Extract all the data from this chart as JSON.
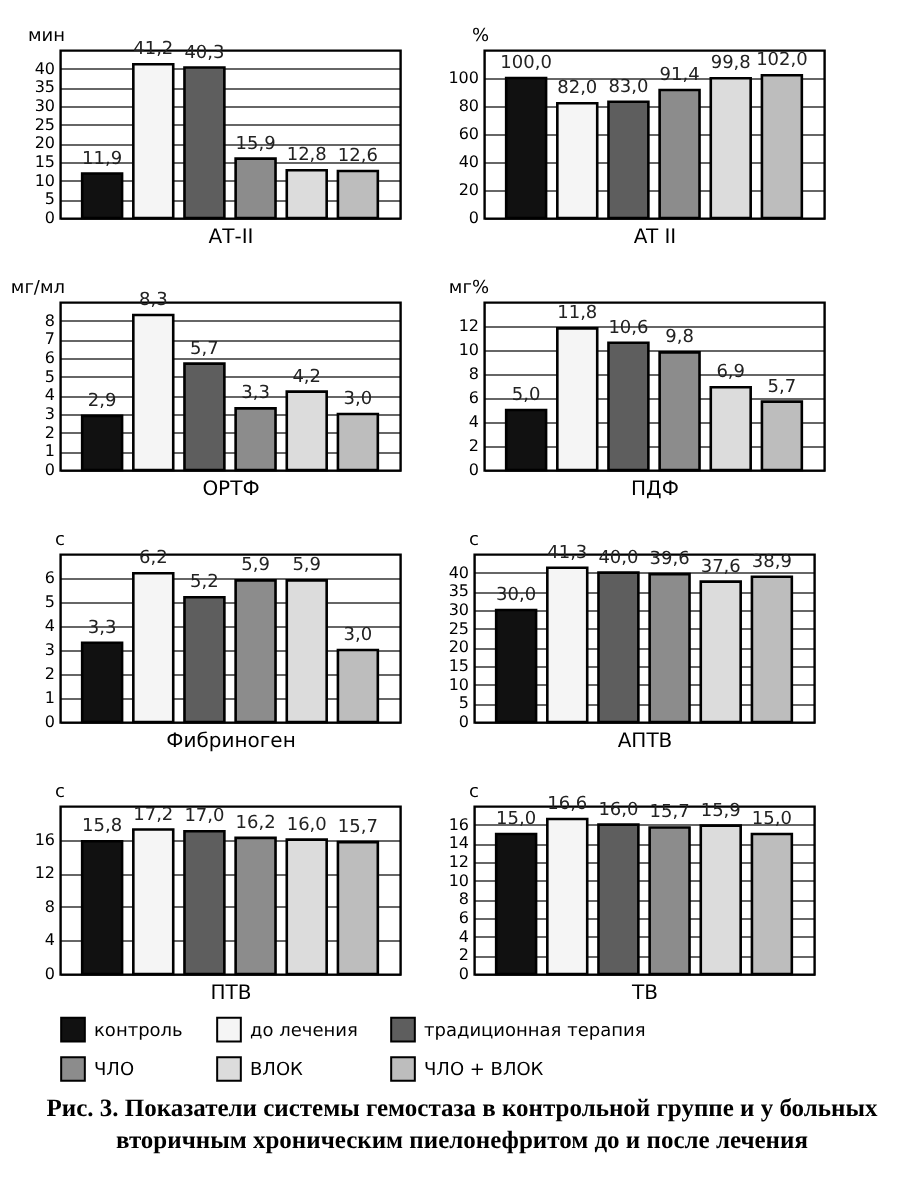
{
  "chart_data": [
    {
      "type": "bar",
      "xlabel": "АТ-II",
      "ylabel": "мин",
      "categories": [
        null
      ],
      "legend": "bottom",
      "ylim": [
        0,
        45
      ],
      "yticks": [
        0,
        5,
        10,
        15,
        20,
        25,
        30,
        35,
        40
      ],
      "grid": "y",
      "series": [
        {
          "name": "контроль",
          "color": "#111111",
          "values": [
            11.9
          ],
          "value_labels": [
            "11,9"
          ]
        },
        {
          "name": "до лечения",
          "color": "#f5f5f5",
          "values": [
            41.2
          ],
          "value_labels": [
            "41,2"
          ]
        },
        {
          "name": "традиционная терапия",
          "color": "#5e5e5e",
          "values": [
            40.3
          ],
          "value_labels": [
            "40,3"
          ]
        },
        {
          "name": "ЧЛО",
          "color": "#8c8c8c",
          "values": [
            15.9
          ],
          "value_labels": [
            "15,9"
          ]
        },
        {
          "name": "ВЛОК",
          "color": "#dcdcdc",
          "values": [
            12.8
          ],
          "value_labels": [
            "12,8"
          ]
        },
        {
          "name": "ЧЛО + ВЛОК",
          "color": "#bdbdbd",
          "values": [
            12.6
          ],
          "value_labels": [
            "12,6"
          ]
        }
      ]
    },
    {
      "type": "bar",
      "xlabel": "AT II",
      "ylabel": "%",
      "categories": [
        null
      ],
      "legend": "bottom",
      "ylim": [
        0,
        120
      ],
      "yticks": [
        0,
        20,
        40,
        60,
        80,
        100
      ],
      "grid": "y",
      "series": [
        {
          "name": "контроль",
          "color": "#111111",
          "values": [
            100.0
          ],
          "value_labels": [
            "100,0"
          ]
        },
        {
          "name": "до лечения",
          "color": "#f5f5f5",
          "values": [
            82.0
          ],
          "value_labels": [
            "82,0"
          ]
        },
        {
          "name": "традиционная терапия",
          "color": "#5e5e5e",
          "values": [
            83.0
          ],
          "value_labels": [
            "83,0"
          ]
        },
        {
          "name": "ЧЛО",
          "color": "#8c8c8c",
          "values": [
            91.4
          ],
          "value_labels": [
            "91,4"
          ]
        },
        {
          "name": "ВЛОК",
          "color": "#dcdcdc",
          "values": [
            99.8
          ],
          "value_labels": [
            "99,8"
          ]
        },
        {
          "name": "ЧЛО + ВЛОК",
          "color": "#bdbdbd",
          "values": [
            102.0
          ],
          "value_labels": [
            "102,0"
          ]
        }
      ]
    },
    {
      "type": "bar",
      "xlabel": "ОРТФ",
      "ylabel": "мг/мл",
      "categories": [
        null
      ],
      "legend": "bottom",
      "ylim": [
        0,
        9
      ],
      "yticks": [
        0,
        1,
        2,
        3,
        4,
        5,
        6,
        7,
        8
      ],
      "grid": "y",
      "series": [
        {
          "name": "контроль",
          "color": "#111111",
          "values": [
            2.9
          ],
          "value_labels": [
            "2,9"
          ]
        },
        {
          "name": "до лечения",
          "color": "#f5f5f5",
          "values": [
            8.3
          ],
          "value_labels": [
            "8,3"
          ]
        },
        {
          "name": "традиционная терапия",
          "color": "#5e5e5e",
          "values": [
            5.7
          ],
          "value_labels": [
            "5,7"
          ]
        },
        {
          "name": "ЧЛО",
          "color": "#8c8c8c",
          "values": [
            3.3
          ],
          "value_labels": [
            "3,3"
          ]
        },
        {
          "name": "ВЛОК",
          "color": "#dcdcdc",
          "values": [
            4.2
          ],
          "value_labels": [
            "4,2"
          ]
        },
        {
          "name": "ЧЛО + ВЛОК",
          "color": "#bdbdbd",
          "values": [
            3.0
          ],
          "value_labels": [
            "3,0"
          ]
        }
      ]
    },
    {
      "type": "bar",
      "xlabel": "ПДФ",
      "ylabel": "мг%",
      "categories": [
        null
      ],
      "legend": "bottom",
      "ylim": [
        0,
        14
      ],
      "yticks": [
        0,
        2,
        4,
        6,
        8,
        10,
        12
      ],
      "grid": "y",
      "series": [
        {
          "name": "контроль",
          "color": "#111111",
          "values": [
            5.0
          ],
          "value_labels": [
            "5,0"
          ]
        },
        {
          "name": "до лечения",
          "color": "#f5f5f5",
          "values": [
            11.8
          ],
          "value_labels": [
            "11,8"
          ]
        },
        {
          "name": "традиционная терапия",
          "color": "#5e5e5e",
          "values": [
            10.6
          ],
          "value_labels": [
            "10,6"
          ]
        },
        {
          "name": "ЧЛО",
          "color": "#8c8c8c",
          "values": [
            9.8
          ],
          "value_labels": [
            "9,8"
          ]
        },
        {
          "name": "ВЛОК",
          "color": "#dcdcdc",
          "values": [
            6.9
          ],
          "value_labels": [
            "6,9"
          ]
        },
        {
          "name": "ЧЛО + ВЛОК",
          "color": "#bdbdbd",
          "values": [
            5.7
          ],
          "value_labels": [
            "5,7"
          ]
        }
      ]
    },
    {
      "type": "bar",
      "xlabel": "Фибриноген",
      "ylabel": "с",
      "categories": [
        null
      ],
      "legend": "bottom",
      "ylim": [
        0,
        7
      ],
      "yticks": [
        0,
        1,
        2,
        3,
        4,
        5,
        6
      ],
      "grid": "y",
      "series": [
        {
          "name": "контроль",
          "color": "#111111",
          "values": [
            3.3
          ],
          "value_labels": [
            "3,3"
          ]
        },
        {
          "name": "до лечения",
          "color": "#f5f5f5",
          "values": [
            6.2
          ],
          "value_labels": [
            "6,2"
          ]
        },
        {
          "name": "традиционная терапия",
          "color": "#5e5e5e",
          "values": [
            5.2
          ],
          "value_labels": [
            "5,2"
          ]
        },
        {
          "name": "ЧЛО",
          "color": "#8c8c8c",
          "values": [
            5.9
          ],
          "value_labels": [
            "5,9"
          ]
        },
        {
          "name": "ВЛОК",
          "color": "#dcdcdc",
          "values": [
            5.9
          ],
          "value_labels": [
            "5,9"
          ]
        },
        {
          "name": "ЧЛО + ВЛОК",
          "color": "#bdbdbd",
          "values": [
            3.0
          ],
          "value_labels": [
            "3,0"
          ]
        }
      ]
    },
    {
      "type": "bar",
      "xlabel": "АПТВ",
      "ylabel": "с",
      "categories": [
        null
      ],
      "legend": "bottom",
      "ylim": [
        0,
        45
      ],
      "yticks": [
        0,
        5,
        10,
        15,
        20,
        25,
        30,
        35,
        40
      ],
      "grid": "y",
      "series": [
        {
          "name": "контроль",
          "color": "#111111",
          "values": [
            30.0
          ],
          "value_labels": [
            "30,0"
          ]
        },
        {
          "name": "до лечения",
          "color": "#f5f5f5",
          "values": [
            41.3
          ],
          "value_labels": [
            "41,3"
          ]
        },
        {
          "name": "традиционная терапия",
          "color": "#5e5e5e",
          "values": [
            40.0
          ],
          "value_labels": [
            "40,0"
          ]
        },
        {
          "name": "ЧЛО",
          "color": "#8c8c8c",
          "values": [
            39.6
          ],
          "value_labels": [
            "39,6"
          ]
        },
        {
          "name": "ВЛОК",
          "color": "#dcdcdc",
          "values": [
            37.6
          ],
          "value_labels": [
            "37,6"
          ]
        },
        {
          "name": "ЧЛО + ВЛОК",
          "color": "#bdbdbd",
          "values": [
            38.9
          ],
          "value_labels": [
            "38,9"
          ]
        }
      ]
    },
    {
      "type": "bar",
      "xlabel": "ПТВ",
      "ylabel": "с",
      "categories": [
        null
      ],
      "legend": "bottom",
      "ylim": [
        0,
        20
      ],
      "yticks": [
        0,
        4,
        8,
        12,
        16
      ],
      "grid": "y",
      "series": [
        {
          "name": "контроль",
          "color": "#111111",
          "values": [
            15.8
          ],
          "value_labels": [
            "15,8"
          ]
        },
        {
          "name": "до лечения",
          "color": "#f5f5f5",
          "values": [
            17.2
          ],
          "value_labels": [
            "17,2"
          ]
        },
        {
          "name": "традиционная терапия",
          "color": "#5e5e5e",
          "values": [
            17.0
          ],
          "value_labels": [
            "17,0"
          ]
        },
        {
          "name": "ЧЛО",
          "color": "#8c8c8c",
          "values": [
            16.2
          ],
          "value_labels": [
            "16,2"
          ]
        },
        {
          "name": "ВЛОК",
          "color": "#dcdcdc",
          "values": [
            16.0
          ],
          "value_labels": [
            "16,0"
          ]
        },
        {
          "name": "ЧЛО + ВЛОК",
          "color": "#bdbdbd",
          "values": [
            15.7
          ],
          "value_labels": [
            "15,7"
          ]
        }
      ]
    },
    {
      "type": "bar",
      "xlabel": "ТВ",
      "ylabel": "с",
      "categories": [
        null
      ],
      "ylim": [
        0,
        18
      ],
      "yticks": [
        0,
        2,
        4,
        6,
        8,
        10,
        12,
        14,
        16
      ],
      "grid": "y",
      "legend": "bottom",
      "annotations": [
        "Рис. 3. Показатели системы гемостаза в контрольной группе и у больных вторичным хроническим пиелонефритом до и после лечения"
      ],
      "series": [
        {
          "name": "контроль",
          "color": "#111111",
          "values": [
            15.0
          ],
          "value_labels": [
            "15,0"
          ]
        },
        {
          "name": "до лечения",
          "color": "#f5f5f5",
          "values": [
            16.6
          ],
          "value_labels": [
            "16,6"
          ]
        },
        {
          "name": "традиционная терапия",
          "color": "#5e5e5e",
          "values": [
            16.0
          ],
          "value_labels": [
            "16,0"
          ]
        },
        {
          "name": "ЧЛО",
          "color": "#8c8c8c",
          "values": [
            15.7
          ],
          "value_labels": [
            "15,7"
          ]
        },
        {
          "name": "ВЛОК",
          "color": "#dcdcdc",
          "values": [
            15.9
          ],
          "value_labels": [
            "15,9"
          ]
        },
        {
          "name": "ЧЛО + ВЛОК",
          "color": "#bdbdbd",
          "values": [
            15.0
          ],
          "value_labels": [
            "15,0"
          ]
        }
      ]
    }
  ]
}
